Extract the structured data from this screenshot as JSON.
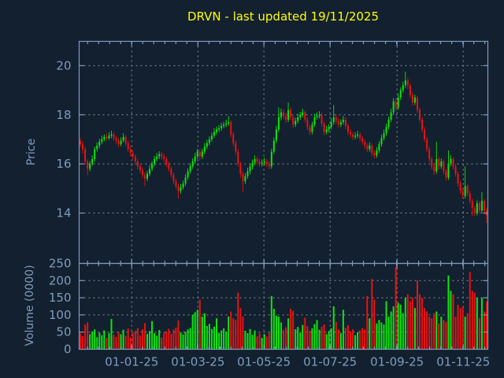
{
  "title": {
    "text": "DRVN - last updated 19/11/2025"
  },
  "colors": {
    "background": "#13202f",
    "title": "#ffff00",
    "axis_border": "#7d9cbe",
    "tick_label": "#7d9cbe",
    "grid": "#9aa5b1",
    "candle_up": "#0ce60c",
    "candle_down": "#e81212"
  },
  "chart_data": {
    "type": "candlestick+volume",
    "title": "DRVN - last updated 19/11/2025",
    "legend": "none",
    "grid": "dashed, on major ticks",
    "price_axis": {
      "label": "Price",
      "ticks": [
        14,
        16,
        18,
        20
      ],
      "tick_labels": [
        "14",
        "16",
        "18",
        "20"
      ],
      "range": [
        11.95,
        20.99
      ]
    },
    "volume_axis": {
      "label": "Volume (0000)",
      "ticks": [
        0,
        50,
        100,
        150,
        200,
        250
      ],
      "tick_labels": [
        "0",
        "50",
        "100",
        "150",
        "200",
        "250"
      ],
      "range": [
        0,
        250
      ]
    },
    "x_axis": {
      "tick_labels": [
        "01-01-25",
        "01-03-25",
        "01-05-25",
        "01-07-25",
        "01-09-25",
        "01-11-25"
      ],
      "tick_indices": [
        21.5,
        49.2,
        76.8,
        104.5,
        132.5,
        160.2
      ],
      "minor_divisions": 6,
      "first_candle": "mid-Nov 2024",
      "last_candle": "19/11/2025"
    },
    "candles_format": [
      "open",
      "high",
      "low",
      "close",
      "volume_x10000"
    ],
    "candles": [
      [
        16.95,
        17.05,
        16.7,
        16.8,
        46
      ],
      [
        16.8,
        16.92,
        16.42,
        16.6,
        38
      ],
      [
        16.6,
        16.7,
        16.0,
        16.1,
        72
      ],
      [
        16.1,
        16.18,
        15.55,
        15.8,
        78
      ],
      [
        15.8,
        16.12,
        15.7,
        16.0,
        44
      ],
      [
        16.0,
        16.35,
        15.92,
        16.2,
        52
      ],
      [
        16.2,
        16.7,
        16.1,
        16.6,
        58
      ],
      [
        16.6,
        16.88,
        16.5,
        16.75,
        35
      ],
      [
        16.75,
        17.02,
        16.64,
        16.9,
        48
      ],
      [
        16.9,
        17.15,
        16.8,
        17.0,
        41
      ],
      [
        17.0,
        17.2,
        16.92,
        17.1,
        55
      ],
      [
        17.1,
        17.24,
        16.95,
        17.05,
        33
      ],
      [
        17.05,
        17.28,
        16.98,
        17.15,
        47
      ],
      [
        17.15,
        17.35,
        17.05,
        17.2,
        88
      ],
      [
        17.2,
        17.3,
        16.95,
        17.05,
        42
      ],
      [
        17.05,
        17.15,
        16.82,
        16.95,
        36
      ],
      [
        16.95,
        17.05,
        16.68,
        16.8,
        50
      ],
      [
        16.8,
        17.08,
        16.72,
        16.95,
        44
      ],
      [
        16.95,
        17.25,
        16.88,
        17.1,
        57
      ],
      [
        17.1,
        17.18,
        16.75,
        16.85,
        39
      ],
      [
        16.85,
        16.95,
        16.48,
        16.6,
        61
      ],
      [
        16.6,
        16.72,
        16.32,
        16.45,
        35
      ],
      [
        16.45,
        16.55,
        16.18,
        16.3,
        49
      ],
      [
        16.3,
        16.4,
        15.98,
        16.1,
        54
      ],
      [
        16.1,
        16.2,
        15.78,
        15.9,
        62
      ],
      [
        15.9,
        16.0,
        15.62,
        15.75,
        40
      ],
      [
        15.75,
        15.85,
        15.42,
        15.55,
        58
      ],
      [
        15.55,
        15.65,
        15.1,
        15.4,
        76
      ],
      [
        15.4,
        15.72,
        15.3,
        15.6,
        45
      ],
      [
        15.6,
        15.95,
        15.5,
        15.8,
        53
      ],
      [
        15.8,
        16.12,
        15.7,
        16.0,
        82
      ],
      [
        16.0,
        16.32,
        15.9,
        16.2,
        47
      ],
      [
        16.2,
        16.45,
        16.1,
        16.3,
        39
      ],
      [
        16.3,
        16.52,
        16.2,
        16.4,
        56
      ],
      [
        16.4,
        16.5,
        16.18,
        16.3,
        34
      ],
      [
        16.3,
        16.42,
        16.08,
        16.2,
        48
      ],
      [
        16.2,
        16.3,
        15.88,
        16.0,
        52
      ],
      [
        16.0,
        16.1,
        15.68,
        15.8,
        60
      ],
      [
        15.8,
        15.9,
        15.44,
        15.55,
        45
      ],
      [
        15.55,
        15.65,
        15.18,
        15.3,
        57
      ],
      [
        15.3,
        15.4,
        14.98,
        15.1,
        63
      ],
      [
        15.1,
        15.2,
        14.6,
        14.9,
        84
      ],
      [
        14.9,
        15.18,
        14.8,
        15.05,
        49
      ],
      [
        15.05,
        15.32,
        14.95,
        15.2,
        43
      ],
      [
        15.2,
        15.58,
        15.1,
        15.45,
        51
      ],
      [
        15.45,
        15.82,
        15.35,
        15.7,
        58
      ],
      [
        15.7,
        16.02,
        15.6,
        15.9,
        62
      ],
      [
        15.9,
        16.22,
        15.8,
        16.1,
        100
      ],
      [
        16.1,
        16.45,
        16.0,
        16.3,
        108
      ],
      [
        16.3,
        16.62,
        16.2,
        16.5,
        115
      ],
      [
        16.5,
        16.6,
        16.15,
        16.3,
        145
      ],
      [
        16.3,
        16.62,
        16.2,
        16.5,
        95
      ],
      [
        16.5,
        16.85,
        16.4,
        16.7,
        105
      ],
      [
        16.7,
        16.98,
        16.6,
        16.85,
        68
      ],
      [
        16.85,
        17.12,
        16.75,
        17.0,
        74
      ],
      [
        17.0,
        17.28,
        16.9,
        17.15,
        59
      ],
      [
        17.15,
        17.45,
        17.05,
        17.3,
        66
      ],
      [
        17.3,
        17.52,
        17.2,
        17.4,
        90
      ],
      [
        17.4,
        17.58,
        17.3,
        17.45,
        48
      ],
      [
        17.45,
        17.68,
        17.35,
        17.55,
        55
      ],
      [
        17.55,
        17.72,
        17.45,
        17.6,
        61
      ],
      [
        17.6,
        17.8,
        17.5,
        17.65,
        52
      ],
      [
        17.65,
        17.95,
        17.55,
        17.7,
        95
      ],
      [
        17.7,
        17.78,
        17.08,
        17.2,
        110
      ],
      [
        17.2,
        17.3,
        16.72,
        16.85,
        90
      ],
      [
        16.85,
        16.95,
        16.38,
        16.5,
        85
      ],
      [
        16.5,
        16.6,
        15.88,
        16.0,
        165
      ],
      [
        16.0,
        16.1,
        15.45,
        15.6,
        120
      ],
      [
        15.6,
        15.7,
        14.85,
        15.3,
        95
      ],
      [
        15.3,
        15.62,
        15.18,
        15.5,
        54
      ],
      [
        15.5,
        15.85,
        15.4,
        15.7,
        47
      ],
      [
        15.7,
        16.02,
        15.58,
        15.9,
        59
      ],
      [
        15.9,
        16.18,
        15.78,
        16.05,
        42
      ],
      [
        16.05,
        16.35,
        15.95,
        16.2,
        55
      ],
      [
        16.2,
        16.3,
        15.98,
        16.1,
        38
      ],
      [
        16.1,
        16.22,
        15.88,
        16.0,
        46
      ],
      [
        16.0,
        16.18,
        15.9,
        16.05,
        33
      ],
      [
        16.05,
        16.25,
        15.95,
        16.1,
        44
      ],
      [
        16.1,
        16.2,
        15.88,
        16.0,
        37
      ],
      [
        16.0,
        16.12,
        15.78,
        15.9,
        49
      ],
      [
        15.9,
        16.62,
        15.8,
        16.5,
        155
      ],
      [
        16.5,
        17.08,
        16.4,
        16.95,
        118
      ],
      [
        16.95,
        17.55,
        16.85,
        17.4,
        98
      ],
      [
        17.4,
        18.3,
        17.3,
        17.9,
        95
      ],
      [
        17.9,
        18.25,
        17.78,
        18.1,
        78
      ],
      [
        18.1,
        18.22,
        17.82,
        17.95,
        56
      ],
      [
        17.95,
        18.08,
        17.68,
        17.8,
        64
      ],
      [
        17.8,
        18.5,
        17.7,
        18.2,
        90
      ],
      [
        18.2,
        18.3,
        17.78,
        17.9,
        118
      ],
      [
        17.9,
        18.0,
        17.48,
        17.6,
        112
      ],
      [
        17.6,
        17.88,
        17.5,
        17.75,
        58
      ],
      [
        17.75,
        18.05,
        17.65,
        17.9,
        65
      ],
      [
        17.9,
        18.12,
        17.8,
        18.0,
        49
      ],
      [
        18.0,
        18.25,
        17.9,
        18.1,
        71
      ],
      [
        18.1,
        18.18,
        17.68,
        17.8,
        92
      ],
      [
        17.8,
        17.9,
        17.38,
        17.5,
        67
      ],
      [
        17.5,
        17.6,
        17.18,
        17.3,
        54
      ],
      [
        17.3,
        17.72,
        17.2,
        17.6,
        61
      ],
      [
        17.6,
        18.05,
        17.5,
        17.9,
        73
      ],
      [
        17.9,
        18.1,
        17.8,
        17.95,
        85
      ],
      [
        17.95,
        18.15,
        17.85,
        18.0,
        57
      ],
      [
        18.0,
        18.08,
        17.52,
        17.65,
        66
      ],
      [
        17.65,
        17.72,
        17.18,
        17.3,
        72
      ],
      [
        17.3,
        17.55,
        17.2,
        17.4,
        44
      ],
      [
        17.4,
        17.62,
        17.28,
        17.5,
        53
      ],
      [
        17.5,
        17.85,
        17.4,
        17.7,
        61
      ],
      [
        17.7,
        18.4,
        17.6,
        17.9,
        125
      ],
      [
        17.9,
        18.02,
        17.62,
        17.75,
        80
      ],
      [
        17.75,
        17.88,
        17.48,
        17.6,
        58
      ],
      [
        17.6,
        17.82,
        17.5,
        17.7,
        47
      ],
      [
        17.7,
        17.95,
        17.6,
        17.8,
        115
      ],
      [
        17.8,
        17.9,
        17.42,
        17.55,
        63
      ],
      [
        17.55,
        17.65,
        17.18,
        17.3,
        70
      ],
      [
        17.3,
        17.42,
        17.08,
        17.2,
        52
      ],
      [
        17.2,
        17.3,
        16.98,
        17.1,
        58
      ],
      [
        17.1,
        17.28,
        17.0,
        17.15,
        41
      ],
      [
        17.15,
        17.35,
        17.05,
        17.2,
        49
      ],
      [
        17.2,
        17.28,
        16.92,
        17.05,
        55
      ],
      [
        17.05,
        17.15,
        16.78,
        16.9,
        62
      ],
      [
        16.9,
        17.0,
        16.62,
        16.75,
        58
      ],
      [
        16.75,
        16.85,
        16.48,
        16.6,
        155
      ],
      [
        16.6,
        16.88,
        16.5,
        16.75,
        90
      ],
      [
        16.75,
        16.82,
        16.32,
        16.45,
        205
      ],
      [
        16.45,
        16.55,
        16.22,
        16.35,
        145
      ],
      [
        16.35,
        16.68,
        16.25,
        16.55,
        75
      ],
      [
        16.55,
        16.92,
        16.45,
        16.8,
        85
      ],
      [
        16.8,
        17.18,
        16.7,
        17.05,
        78
      ],
      [
        17.05,
        17.4,
        16.95,
        17.25,
        72
      ],
      [
        17.25,
        17.65,
        17.15,
        17.5,
        140
      ],
      [
        17.5,
        17.92,
        17.4,
        17.8,
        95
      ],
      [
        17.8,
        18.25,
        17.7,
        18.1,
        110
      ],
      [
        18.1,
        18.68,
        18.0,
        18.55,
        125
      ],
      [
        18.55,
        18.65,
        18.15,
        18.3,
        240
      ],
      [
        18.3,
        18.85,
        18.2,
        18.7,
        135
      ],
      [
        18.7,
        19.12,
        18.6,
        19.0,
        130
      ],
      [
        19.0,
        19.35,
        18.9,
        19.2,
        105
      ],
      [
        19.2,
        19.75,
        19.1,
        19.4,
        150
      ],
      [
        19.4,
        19.5,
        19.05,
        19.2,
        160
      ],
      [
        19.2,
        19.28,
        18.68,
        18.8,
        140
      ],
      [
        18.8,
        18.9,
        18.38,
        18.5,
        150
      ],
      [
        18.5,
        18.82,
        18.4,
        18.7,
        120
      ],
      [
        18.7,
        18.78,
        18.08,
        18.2,
        200
      ],
      [
        18.2,
        18.3,
        17.68,
        17.8,
        160
      ],
      [
        17.8,
        17.9,
        17.28,
        17.4,
        150
      ],
      [
        17.4,
        17.5,
        16.88,
        17.0,
        120
      ],
      [
        17.0,
        17.1,
        16.48,
        16.6,
        110
      ],
      [
        16.6,
        16.7,
        16.08,
        16.2,
        95
      ],
      [
        16.2,
        16.3,
        15.78,
        15.9,
        90
      ],
      [
        15.9,
        16.0,
        15.55,
        15.7,
        105
      ],
      [
        15.7,
        16.9,
        15.6,
        16.2,
        110
      ],
      [
        16.2,
        16.28,
        15.78,
        15.9,
        75
      ],
      [
        15.9,
        16.22,
        15.8,
        16.1,
        95
      ],
      [
        16.1,
        16.18,
        15.58,
        15.7,
        85
      ],
      [
        15.7,
        15.8,
        15.32,
        15.45,
        80
      ],
      [
        15.45,
        16.55,
        15.35,
        16.0,
        215
      ],
      [
        16.0,
        16.35,
        15.9,
        16.2,
        170
      ],
      [
        16.2,
        16.28,
        15.78,
        15.9,
        160
      ],
      [
        15.9,
        16.0,
        15.48,
        15.6,
        95
      ],
      [
        15.6,
        15.7,
        15.08,
        15.2,
        130
      ],
      [
        15.2,
        15.3,
        14.78,
        14.9,
        120
      ],
      [
        14.9,
        15.0,
        14.58,
        14.7,
        125
      ],
      [
        14.7,
        15.9,
        14.6,
        15.1,
        95
      ],
      [
        15.1,
        15.18,
        14.68,
        14.8,
        105
      ],
      [
        14.8,
        14.9,
        14.38,
        14.5,
        225
      ],
      [
        14.5,
        14.58,
        13.88,
        14.2,
        170
      ],
      [
        14.2,
        14.3,
        13.88,
        14.0,
        165
      ],
      [
        14.0,
        14.52,
        13.9,
        14.4,
        150
      ],
      [
        14.4,
        14.48,
        13.98,
        14.1,
        90
      ],
      [
        14.1,
        14.85,
        14.0,
        14.5,
        150
      ],
      [
        14.5,
        14.58,
        13.95,
        14.1,
        110
      ],
      [
        14.1,
        14.2,
        13.6,
        13.9,
        140
      ]
    ]
  }
}
